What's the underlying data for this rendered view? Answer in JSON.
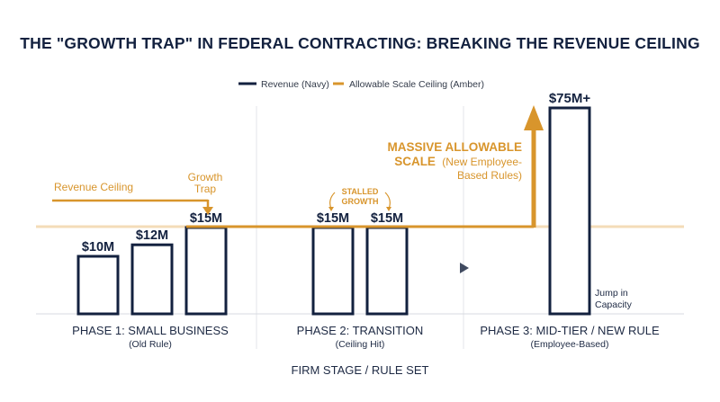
{
  "chart_data": {
    "type": "bar",
    "title": "THE \"GROWTH TRAP\" IN FEDERAL CONTRACTING: BREAKING THE REVENUE CEILING",
    "xlabel": "FIRM STAGE / RULE SET",
    "ylabel": "",
    "legend": [
      "Revenue (Navy)",
      "Allowable Scale Ceiling (Amber)"
    ],
    "legend_position": "top-center",
    "colors": {
      "navy": "#13213f",
      "amber": "#d8952c",
      "band": "#f4dcb8",
      "divider": "#e3e5ea"
    },
    "bars": [
      {
        "label": "$10M",
        "value": 10
      },
      {
        "label": "$12M",
        "value": 12
      },
      {
        "label": "$15M",
        "value": 15
      },
      {
        "label": "$15M",
        "value": 15
      },
      {
        "label": "$15M",
        "value": 15
      },
      {
        "label": "$75M+",
        "value": 75
      }
    ],
    "phases": [
      {
        "name": "PHASE 1: SMALL BUSINESS",
        "sub": "(Old Rule)"
      },
      {
        "name": "PHASE 2: TRANSITION",
        "sub": "(Ceiling Hit)"
      },
      {
        "name": "PHASE 3: MID-TIER / NEW RULE",
        "sub": "(Employee-Based)"
      }
    ],
    "annotations": {
      "revenue_ceiling": "Revenue Ceiling",
      "growth_trap": [
        "Growth",
        "Trap"
      ],
      "stalled_growth": [
        "STALLED",
        "GROWTH"
      ],
      "massive_bold": [
        "MASSIVE ALLOWABLE",
        "SCALE"
      ],
      "massive_normal": [
        "(New Employee-",
        "Based Rules)"
      ],
      "jump": [
        "Jump in",
        "Capacity"
      ]
    }
  }
}
